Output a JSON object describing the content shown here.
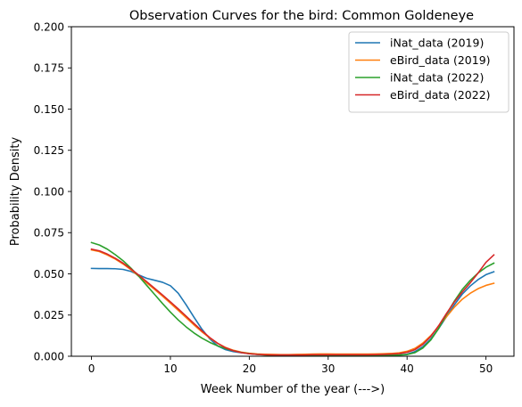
{
  "chart_data": {
    "type": "line",
    "title": "Observation Curves for the bird: Common Goldeneye",
    "xlabel": "Week Number of the year (--->)",
    "ylabel": "Probability Density",
    "xlim": [
      -2.55,
      53.55
    ],
    "ylim": [
      0,
      0.2
    ],
    "xticks": [
      0,
      10,
      20,
      30,
      40,
      50
    ],
    "xtick_labels": [
      "0",
      "10",
      "20",
      "30",
      "40",
      "50"
    ],
    "yticks": [
      0,
      0.025,
      0.05,
      0.075,
      0.1,
      0.125,
      0.15,
      0.175,
      0.2
    ],
    "ytick_labels": [
      "0.000",
      "0.025",
      "0.050",
      "0.075",
      "0.100",
      "0.125",
      "0.150",
      "0.175",
      "0.200"
    ],
    "grid": false,
    "legend_position": "upper right",
    "series": [
      {
        "name": "iNat_data (2019)",
        "color": "#1f77b4",
        "points": [
          [
            0,
            0.0533
          ],
          [
            1,
            0.0532
          ],
          [
            2,
            0.0532
          ],
          [
            3,
            0.0531
          ],
          [
            4,
            0.0527
          ],
          [
            5,
            0.0515
          ],
          [
            6,
            0.0493
          ],
          [
            7,
            0.0473
          ],
          [
            8,
            0.0461
          ],
          [
            9,
            0.0449
          ],
          [
            10,
            0.0428
          ],
          [
            11,
            0.0382
          ],
          [
            12,
            0.0312
          ],
          [
            13,
            0.0236
          ],
          [
            14,
            0.0164
          ],
          [
            15,
            0.0105
          ],
          [
            16,
            0.0062
          ],
          [
            17,
            0.004
          ],
          [
            18,
            0.0028
          ],
          [
            19,
            0.0021
          ],
          [
            20,
            0.0016
          ],
          [
            21,
            0.0012
          ],
          [
            22,
            0.001
          ],
          [
            23,
            0.0008
          ],
          [
            24,
            0.0007
          ],
          [
            25,
            0.0006
          ],
          [
            26,
            0.0006
          ],
          [
            27,
            0.0006
          ],
          [
            28,
            0.0006
          ],
          [
            29,
            0.0006
          ],
          [
            30,
            0.0006
          ],
          [
            31,
            0.0006
          ],
          [
            32,
            0.0006
          ],
          [
            33,
            0.0006
          ],
          [
            34,
            0.0006
          ],
          [
            35,
            0.0006
          ],
          [
            36,
            0.0006
          ],
          [
            37,
            0.0006
          ],
          [
            38,
            0.0007
          ],
          [
            39,
            0.0008
          ],
          [
            40,
            0.0012
          ],
          [
            41,
            0.0028
          ],
          [
            42,
            0.0058
          ],
          [
            43,
            0.0105
          ],
          [
            44,
            0.0168
          ],
          [
            45,
            0.024
          ],
          [
            46,
            0.0313
          ],
          [
            47,
            0.0377
          ],
          [
            48,
            0.0426
          ],
          [
            49,
            0.0465
          ],
          [
            50,
            0.0495
          ],
          [
            51,
            0.0513
          ]
        ]
      },
      {
        "name": "eBird_data (2019)",
        "color": "#ff7f0e",
        "points": [
          [
            0,
            0.0645
          ],
          [
            1,
            0.0635
          ],
          [
            2,
            0.0615
          ],
          [
            3,
            0.059
          ],
          [
            4,
            0.056
          ],
          [
            5,
            0.0525
          ],
          [
            6,
            0.0485
          ],
          [
            7,
            0.0445
          ],
          [
            8,
            0.0405
          ],
          [
            9,
            0.0365
          ],
          [
            10,
            0.0322
          ],
          [
            11,
            0.0278
          ],
          [
            12,
            0.0234
          ],
          [
            13,
            0.019
          ],
          [
            14,
            0.0148
          ],
          [
            15,
            0.011
          ],
          [
            16,
            0.0078
          ],
          [
            17,
            0.0053
          ],
          [
            18,
            0.0036
          ],
          [
            19,
            0.0025
          ],
          [
            20,
            0.0018
          ],
          [
            21,
            0.0014
          ],
          [
            22,
            0.0012
          ],
          [
            23,
            0.0011
          ],
          [
            24,
            0.001
          ],
          [
            25,
            0.001
          ],
          [
            26,
            0.0011
          ],
          [
            27,
            0.0012
          ],
          [
            28,
            0.0013
          ],
          [
            29,
            0.0014
          ],
          [
            30,
            0.0014
          ],
          [
            31,
            0.0013
          ],
          [
            32,
            0.0013
          ],
          [
            33,
            0.0013
          ],
          [
            34,
            0.0013
          ],
          [
            35,
            0.0013
          ],
          [
            36,
            0.0014
          ],
          [
            37,
            0.0015
          ],
          [
            38,
            0.0017
          ],
          [
            39,
            0.0021
          ],
          [
            40,
            0.003
          ],
          [
            41,
            0.0048
          ],
          [
            42,
            0.008
          ],
          [
            43,
            0.0125
          ],
          [
            44,
            0.018
          ],
          [
            45,
            0.024
          ],
          [
            46,
            0.0298
          ],
          [
            47,
            0.0346
          ],
          [
            48,
            0.0382
          ],
          [
            49,
            0.041
          ],
          [
            50,
            0.043
          ],
          [
            51,
            0.0443
          ]
        ]
      },
      {
        "name": "iNat_data (2022)",
        "color": "#2ca02c",
        "points": [
          [
            0,
            0.069
          ],
          [
            1,
            0.0675
          ],
          [
            2,
            0.065
          ],
          [
            3,
            0.0617
          ],
          [
            4,
            0.058
          ],
          [
            5,
            0.0535
          ],
          [
            6,
            0.0485
          ],
          [
            7,
            0.043
          ],
          [
            8,
            0.0375
          ],
          [
            9,
            0.032
          ],
          [
            10,
            0.0268
          ],
          [
            11,
            0.022
          ],
          [
            12,
            0.0178
          ],
          [
            13,
            0.0141
          ],
          [
            14,
            0.011
          ],
          [
            15,
            0.0084
          ],
          [
            16,
            0.0063
          ],
          [
            17,
            0.0046
          ],
          [
            18,
            0.0033
          ],
          [
            19,
            0.0023
          ],
          [
            20,
            0.0016
          ],
          [
            21,
            0.0011
          ],
          [
            22,
            0.0008
          ],
          [
            23,
            0.0006
          ],
          [
            24,
            0.0005
          ],
          [
            25,
            0.0005
          ],
          [
            26,
            0.0005
          ],
          [
            27,
            0.0005
          ],
          [
            28,
            0.0005
          ],
          [
            29,
            0.0005
          ],
          [
            30,
            0.0005
          ],
          [
            31,
            0.0005
          ],
          [
            32,
            0.0005
          ],
          [
            33,
            0.0005
          ],
          [
            34,
            0.0005
          ],
          [
            35,
            0.0005
          ],
          [
            36,
            0.0005
          ],
          [
            37,
            0.0005
          ],
          [
            38,
            0.0006
          ],
          [
            39,
            0.0007
          ],
          [
            40,
            0.001
          ],
          [
            41,
            0.0022
          ],
          [
            42,
            0.005
          ],
          [
            43,
            0.0098
          ],
          [
            44,
            0.0168
          ],
          [
            45,
            0.0255
          ],
          [
            46,
            0.0335
          ],
          [
            47,
            0.0405
          ],
          [
            48,
            0.046
          ],
          [
            49,
            0.0505
          ],
          [
            50,
            0.054
          ],
          [
            51,
            0.0565
          ]
        ]
      },
      {
        "name": "eBird_data (2022)",
        "color": "#d62728",
        "points": [
          [
            0,
            0.065
          ],
          [
            1,
            0.064
          ],
          [
            2,
            0.062
          ],
          [
            3,
            0.0595
          ],
          [
            4,
            0.0565
          ],
          [
            5,
            0.053
          ],
          [
            6,
            0.0492
          ],
          [
            7,
            0.0452
          ],
          [
            8,
            0.0412
          ],
          [
            9,
            0.0372
          ],
          [
            10,
            0.033
          ],
          [
            11,
            0.0287
          ],
          [
            12,
            0.0243
          ],
          [
            13,
            0.0198
          ],
          [
            14,
            0.0154
          ],
          [
            15,
            0.0113
          ],
          [
            16,
            0.0078
          ],
          [
            17,
            0.0051
          ],
          [
            18,
            0.0033
          ],
          [
            19,
            0.0022
          ],
          [
            20,
            0.0015
          ],
          [
            21,
            0.0011
          ],
          [
            22,
            0.0009
          ],
          [
            23,
            0.0008
          ],
          [
            24,
            0.0008
          ],
          [
            25,
            0.0008
          ],
          [
            26,
            0.0008
          ],
          [
            27,
            0.0008
          ],
          [
            28,
            0.0009
          ],
          [
            29,
            0.0009
          ],
          [
            30,
            0.0009
          ],
          [
            31,
            0.0009
          ],
          [
            32,
            0.0009
          ],
          [
            33,
            0.0009
          ],
          [
            34,
            0.0009
          ],
          [
            35,
            0.0009
          ],
          [
            36,
            0.001
          ],
          [
            37,
            0.0011
          ],
          [
            38,
            0.0013
          ],
          [
            39,
            0.0016
          ],
          [
            40,
            0.0024
          ],
          [
            41,
            0.004
          ],
          [
            42,
            0.0072
          ],
          [
            43,
            0.012
          ],
          [
            44,
            0.0185
          ],
          [
            45,
            0.026
          ],
          [
            46,
            0.033
          ],
          [
            47,
            0.039
          ],
          [
            48,
            0.0445
          ],
          [
            49,
            0.0505
          ],
          [
            50,
            0.057
          ],
          [
            51,
            0.0615
          ]
        ]
      }
    ]
  }
}
